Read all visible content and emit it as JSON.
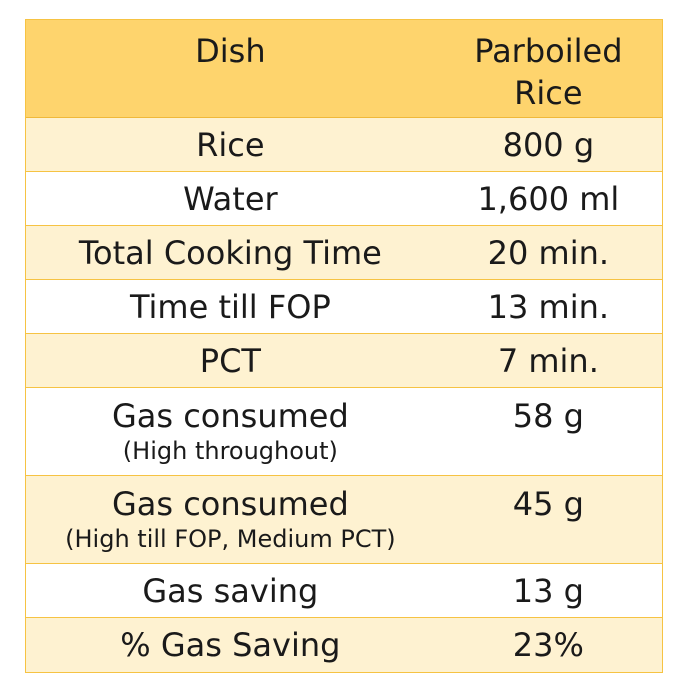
{
  "header": {
    "col1": "Dish",
    "col2": "Parboiled\nRice"
  },
  "rows": [
    {
      "label": "Rice",
      "value": "800 g"
    },
    {
      "label": "Water",
      "value": "1,600 ml"
    },
    {
      "label": "Total Cooking Time",
      "value": "20 min."
    },
    {
      "label": "Time till FOP",
      "value": "13 min."
    },
    {
      "label": "PCT",
      "value": "7 min."
    },
    {
      "label": "Gas consumed",
      "sublabel": "(High throughout)",
      "value": "58 g"
    },
    {
      "label": "Gas consumed",
      "sublabel": "(High till FOP, Medium PCT)",
      "value": "45 g"
    },
    {
      "label": "Gas saving",
      "value": "13 g"
    },
    {
      "label": "% Gas Saving",
      "value": "23%"
    }
  ],
  "colors": {
    "header_bg": "#fed46d",
    "alt_row_bg": "#fef2d1",
    "border": "#f6c343"
  }
}
